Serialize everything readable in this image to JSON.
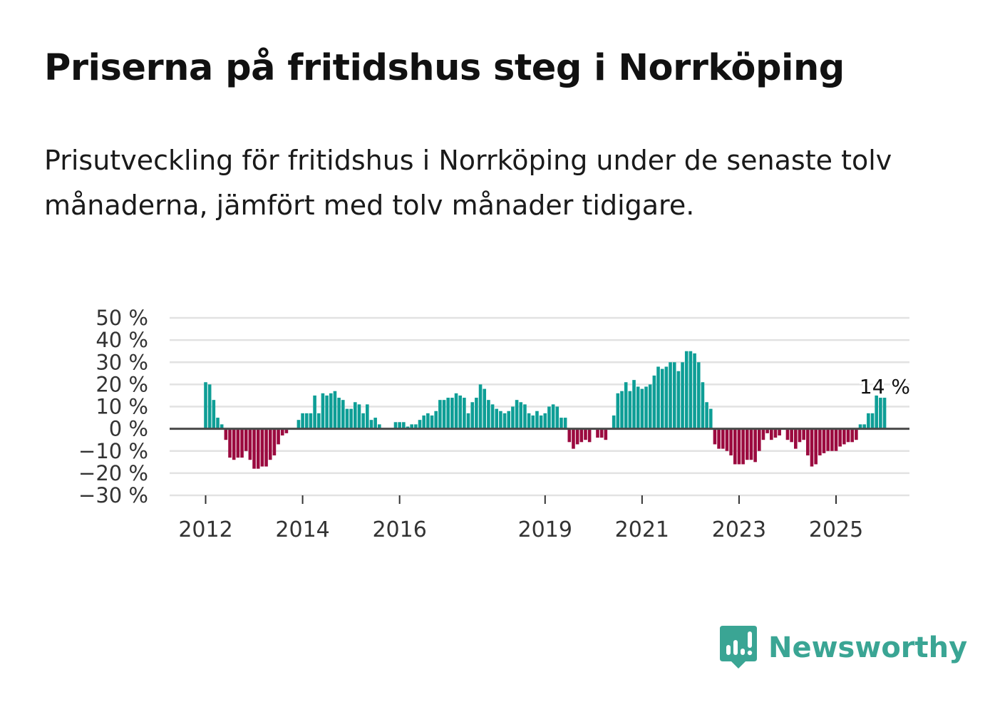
{
  "title": "Priserna på fritidshus steg i Norrköping",
  "subtitle": "Prisutveckling för fritidshus i Norrköping under de senaste tolv månaderna, jämfört med tolv månader tidigare.",
  "brand": {
    "name": "Newsworthy"
  },
  "colors": {
    "positive": "#0e9e96",
    "negative": "#9b0a3f",
    "grid": "#e2e2e2",
    "zero_line": "#4a4a4a",
    "brand": "#3aa594"
  },
  "chart_data": {
    "type": "bar",
    "title": "Priserna på fritidshus steg i Norrköping",
    "ylabel": "",
    "xlabel": "",
    "ylim": [
      -30,
      50
    ],
    "y_ticks": [
      50,
      40,
      30,
      20,
      10,
      0,
      -10,
      -20,
      -30
    ],
    "y_tick_labels": [
      "50 %",
      "40 %",
      "30 %",
      "20 %",
      "10 %",
      "0 %",
      "−10 %",
      "−20 %",
      "−30 %"
    ],
    "x_ticks": [
      {
        "label": "2012",
        "month_index": 0
      },
      {
        "label": "2014",
        "month_index": 24
      },
      {
        "label": "2016",
        "month_index": 48
      },
      {
        "label": "2019",
        "month_index": 84
      },
      {
        "label": "2021",
        "month_index": 108
      },
      {
        "label": "2023",
        "month_index": 132
      },
      {
        "label": "2025",
        "month_index": 156
      }
    ],
    "start": "2012-01",
    "unit": "%",
    "last_value_label": "14 %",
    "values": [
      21,
      20,
      13,
      5,
      2,
      -5,
      -13,
      -14,
      -13,
      -13,
      -10,
      -14,
      -18,
      -18,
      -17,
      -17,
      -14,
      -12,
      -7,
      -3,
      -2,
      0,
      0,
      4,
      7,
      7,
      7,
      15,
      7,
      16,
      15,
      16,
      17,
      14,
      13,
      9,
      9,
      12,
      11,
      7,
      11,
      4,
      5,
      2,
      0,
      0,
      0,
      3,
      3,
      3,
      1,
      2,
      2,
      4,
      6,
      7,
      6,
      8,
      13,
      13,
      14,
      14,
      16,
      15,
      14,
      7,
      12,
      14,
      20,
      18,
      13,
      11,
      9,
      8,
      7,
      8,
      10,
      13,
      12,
      11,
      7,
      6,
      8,
      6,
      7,
      10,
      11,
      10,
      5,
      5,
      -6,
      -9,
      -7,
      -6,
      -5,
      -6,
      0,
      -4,
      -4,
      -5,
      0,
      6,
      16,
      17,
      21,
      17,
      22,
      19,
      18,
      19,
      20,
      24,
      28,
      27,
      28,
      30,
      30,
      26,
      30,
      35,
      35,
      34,
      30,
      21,
      12,
      9,
      -7,
      -9,
      -9,
      -10,
      -12,
      -16,
      -16,
      -16,
      -14,
      -14,
      -15,
      -10,
      -5,
      -2,
      -5,
      -4,
      -3,
      0,
      -5,
      -6,
      -9,
      -6,
      -5,
      -12,
      -17,
      -16,
      -12,
      -11,
      -10,
      -10,
      -10,
      -8,
      -7,
      -6,
      -6,
      -5,
      2,
      2,
      7,
      7,
      15,
      14,
      14
    ]
  }
}
